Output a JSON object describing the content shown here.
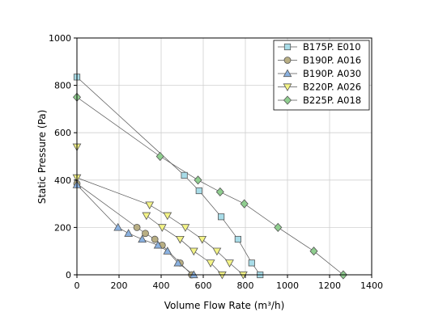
{
  "chart_data": {
    "type": "scatter",
    "xlabel": "Volume Flow Rate (m³/h)",
    "ylabel": "Static Pressure (Pa)",
    "xlim": [
      0,
      1400
    ],
    "ylim": [
      0,
      1000
    ],
    "x_ticks": [
      0,
      200,
      400,
      600,
      800,
      1000,
      1200,
      1400
    ],
    "y_ticks": [
      0,
      200,
      400,
      600,
      800,
      1000
    ],
    "grid": true,
    "legend_position": "top-right",
    "series": [
      {
        "name": "B175P. E010",
        "marker": "square",
        "color": "#a8dce8",
        "points": [
          [
            0,
            835
          ],
          [
            510,
            420
          ],
          [
            580,
            355
          ],
          [
            685,
            245
          ],
          [
            765,
            150
          ],
          [
            830,
            50
          ],
          [
            870,
            0
          ]
        ]
      },
      {
        "name": "B190P. A016",
        "marker": "circle",
        "color": "#b8ae83",
        "points": [
          [
            0,
            385
          ],
          [
            285,
            200
          ],
          [
            325,
            175
          ],
          [
            370,
            150
          ],
          [
            405,
            125
          ],
          [
            490,
            50
          ],
          [
            545,
            0
          ]
        ]
      },
      {
        "name": "B190P. A030",
        "marker": "triangle-up",
        "color": "#8ab1e0",
        "points": [
          [
            0,
            380
          ],
          [
            195,
            200
          ],
          [
            245,
            175
          ],
          [
            310,
            150
          ],
          [
            385,
            125
          ],
          [
            430,
            100
          ],
          [
            480,
            50
          ],
          [
            555,
            0
          ]
        ]
      },
      {
        "name": "B220P. A026",
        "marker": "triangle-down",
        "color": "#f4f486",
        "points": [
          [
            0,
            540
          ],
          [
            0,
            410
          ],
          [
            345,
            295
          ],
          [
            430,
            250
          ],
          [
            515,
            200
          ],
          [
            595,
            150
          ],
          [
            665,
            100
          ],
          [
            725,
            50
          ],
          [
            790,
            0
          ],
          [
            330,
            250
          ],
          [
            405,
            200
          ],
          [
            490,
            150
          ],
          [
            555,
            100
          ],
          [
            635,
            50
          ],
          [
            690,
            0
          ]
        ]
      },
      {
        "name": "B225P. A018",
        "marker": "diamond",
        "color": "#8fce8f",
        "points": [
          [
            0,
            750
          ],
          [
            395,
            500
          ],
          [
            575,
            400
          ],
          [
            680,
            350
          ],
          [
            795,
            300
          ],
          [
            955,
            200
          ],
          [
            1125,
            100
          ],
          [
            1265,
            0
          ]
        ]
      }
    ]
  }
}
